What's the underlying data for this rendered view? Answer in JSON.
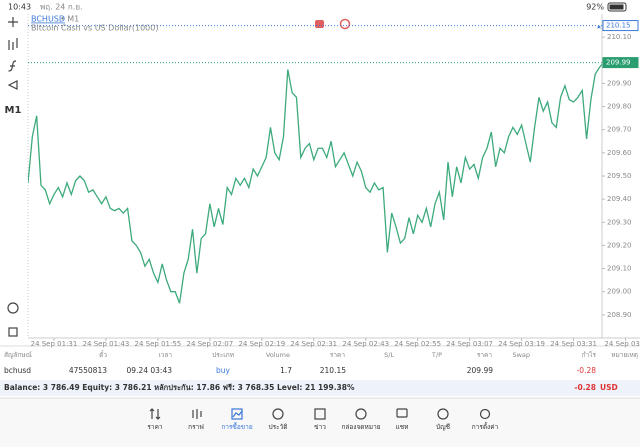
{
  "status_bar": {
    "time": "10:43",
    "date": "พฤ. 24 ก.ย.",
    "battery": "92%"
  },
  "toolbar": {
    "timeframe": "M1"
  },
  "chart_data": {
    "type": "line",
    "symbol": "BCHUSD",
    "timeframe": "• M1",
    "subtitle": "Bitcoin Cash vs US Dollar(1000)",
    "color": "#3daa7c",
    "categories": [
      null,
      null,
      null,
      null,
      null,
      null,
      "24 Sep 01:31",
      null,
      null,
      null,
      null,
      null,
      null,
      null,
      null,
      null,
      null,
      null,
      "24 Sep 01:43",
      null,
      null,
      null,
      null,
      null,
      null,
      null,
      null,
      null,
      null,
      null,
      "24 Sep 01:55",
      null,
      null,
      null,
      null,
      null,
      null,
      null,
      null,
      null,
      null,
      null,
      "24 Sep 02:07",
      null,
      null,
      null,
      null,
      null,
      null,
      null,
      null,
      null,
      null,
      null,
      "24 Sep 02:19",
      null,
      null,
      null,
      null,
      null,
      null,
      null,
      null,
      null,
      null,
      null,
      "24 Sep 02:31",
      null,
      null,
      null,
      null,
      null,
      null,
      null,
      null,
      null,
      null,
      null,
      "24 Sep 02:43",
      null,
      null,
      null,
      null,
      null,
      null,
      null,
      null,
      null,
      null,
      null,
      "24 Sep 02:55",
      null,
      null,
      null,
      null,
      null,
      null,
      null,
      null,
      null,
      null,
      null,
      "24 Sep 03:07",
      null,
      null,
      null,
      null,
      null,
      null,
      null,
      null,
      null,
      null,
      null,
      "24 Sep 03:19",
      null,
      null,
      null,
      null,
      null,
      null,
      null,
      null,
      null,
      null,
      null,
      "24 Sep 03:31",
      null,
      null,
      null,
      null,
      null,
      null,
      null,
      null,
      null,
      null,
      null,
      "24 Sep 03:4"
    ],
    "values": [
      209.47,
      209.67,
      209.76,
      209.46,
      209.44,
      209.38,
      209.42,
      209.45,
      209.41,
      209.47,
      209.42,
      209.48,
      209.5,
      209.48,
      209.43,
      209.44,
      209.41,
      209.38,
      209.41,
      209.36,
      209.35,
      209.36,
      209.34,
      209.36,
      209.22,
      209.2,
      209.17,
      209.11,
      209.14,
      209.08,
      209.04,
      209.12,
      209.05,
      209.0,
      209.0,
      208.95,
      209.08,
      209.14,
      209.27,
      209.08,
      209.23,
      209.25,
      209.38,
      209.28,
      209.36,
      209.29,
      209.45,
      209.42,
      209.49,
      209.46,
      209.49,
      209.45,
      209.53,
      209.5,
      209.54,
      209.58,
      209.71,
      209.6,
      209.57,
      209.67,
      209.96,
      209.86,
      209.84,
      209.58,
      209.62,
      209.64,
      209.57,
      209.62,
      209.62,
      209.58,
      209.65,
      209.54,
      209.57,
      209.6,
      209.55,
      209.5,
      209.56,
      209.52,
      209.45,
      209.43,
      209.47,
      209.44,
      209.45,
      209.17,
      209.34,
      209.28,
      209.21,
      209.23,
      209.32,
      209.25,
      209.33,
      209.3,
      209.36,
      209.28,
      209.38,
      209.43,
      209.31,
      209.56,
      209.41,
      209.54,
      209.47,
      209.58,
      209.53,
      209.55,
      209.49,
      209.58,
      209.62,
      209.69,
      209.54,
      209.62,
      209.6,
      209.67,
      209.71,
      209.68,
      209.72,
      209.64,
      209.56,
      209.71,
      209.84,
      209.78,
      209.82,
      209.73,
      209.71,
      209.84,
      209.89,
      209.83,
      209.82,
      209.84,
      209.87,
      209.66,
      209.83,
      209.94,
      209.97,
      209.99,
      null,
      null,
      null,
      null,
      null
    ],
    "ylim": [
      208.8,
      210.2
    ],
    "yticks": [
      {
        "value": 208.9,
        "label": "208.90"
      },
      {
        "value": 209,
        "label": "209.00"
      },
      {
        "value": 209.1,
        "label": "209.10"
      },
      {
        "value": 209.2,
        "label": "209.20"
      },
      {
        "value": 209.3,
        "label": "209.30"
      },
      {
        "value": 209.4,
        "label": "209.40"
      },
      {
        "value": 209.5,
        "label": "209.50"
      },
      {
        "value": 209.6,
        "label": "209.60"
      },
      {
        "value": 209.7,
        "label": "209.70"
      },
      {
        "value": 209.8,
        "label": "209.80"
      },
      {
        "value": 209.9,
        "label": "209.90"
      },
      {
        "value": 210,
        "label": "210.00"
      },
      {
        "value": 210.1,
        "label": "210.10"
      }
    ],
    "price_lines": [
      {
        "value": 210.15,
        "color": "#3a78d8"
      },
      {
        "value": 209.99,
        "color": "#2a9d6f"
      }
    ]
  },
  "positions": {
    "headers": [
      "สัญลักษณ์",
      "ตั๋ว",
      "เวลา",
      "ประเภท",
      "Volume",
      "ราคา",
      "S/L",
      "T/P",
      "ราคา",
      "Swap",
      "กำไร",
      "หมายเหตุ"
    ],
    "row": {
      "symbol": "bchusd",
      "ticket": "47550813",
      "time": "09.24 03:43",
      "type": "buy",
      "volume": 1.7,
      "open_price": 210.15,
      "price": 209.99,
      "profit": -0.28
    }
  },
  "summary": {
    "balance_line": "Balance: 3 786.49 Equity: 3 786.21 หลักประกัน: 17.86 ฟรี: 3 768.35 Level: 21 199.38%",
    "profit": -0.28,
    "currency": "USD"
  },
  "tabs": [
    "ราคา",
    "กราฟ",
    "การซื้อขาย",
    "ประวัติ",
    "ข่าว",
    "กล่องจดหมาย",
    "แชท",
    "บัญชี",
    "การตั้งค่า"
  ]
}
